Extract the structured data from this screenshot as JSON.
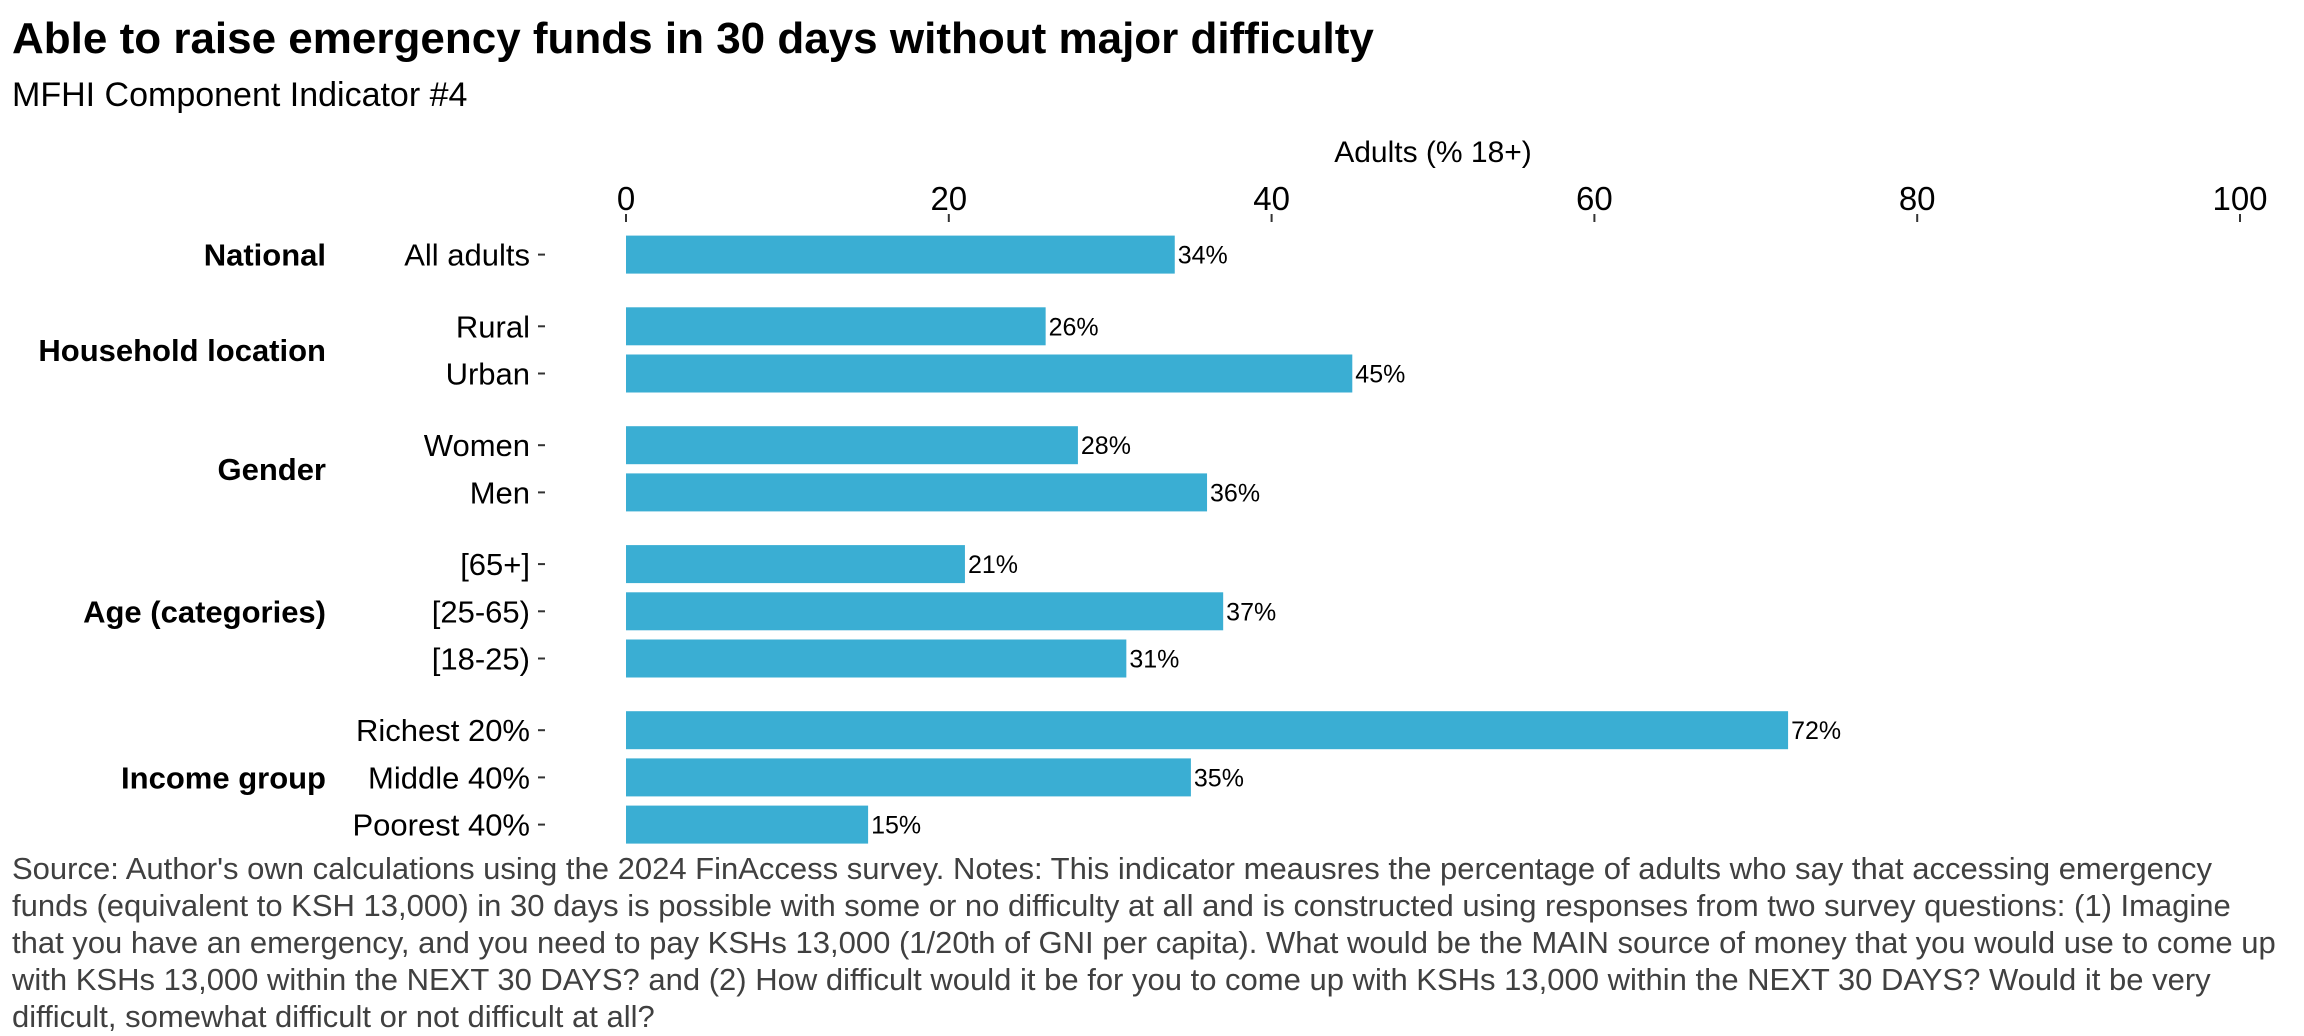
{
  "chart_data": {
    "type": "bar",
    "orientation": "horizontal",
    "title": "Able to raise emergency funds in 30 days without major difficulty",
    "subtitle": "MFHI Component Indicator #4",
    "xlabel": "Adults (% 18+)",
    "xlim": [
      0,
      100
    ],
    "x_ticks": [
      "0",
      "20",
      "40",
      "60",
      "80",
      "100"
    ],
    "x_axis_position": "top",
    "grid": false,
    "bar_color": "#3AAED3",
    "groups": [
      {
        "name": "National",
        "categories": [
          {
            "label": "All adults",
            "value": 34,
            "value_label": "34%"
          }
        ]
      },
      {
        "name": "Household location",
        "categories": [
          {
            "label": "Rural",
            "value": 26,
            "value_label": "26%"
          },
          {
            "label": "Urban",
            "value": 45,
            "value_label": "45%"
          }
        ]
      },
      {
        "name": "Gender",
        "categories": [
          {
            "label": "Women",
            "value": 28,
            "value_label": "28%"
          },
          {
            "label": "Men",
            "value": 36,
            "value_label": "36%"
          }
        ]
      },
      {
        "name": "Age (categories)",
        "categories": [
          {
            "label": "[65+]",
            "value": 21,
            "value_label": "21%"
          },
          {
            "label": "[25-65)",
            "value": 37,
            "value_label": "37%"
          },
          {
            "label": "[18-25)",
            "value": 31,
            "value_label": "31%"
          }
        ]
      },
      {
        "name": "Income group",
        "categories": [
          {
            "label": "Richest 20%",
            "value": 72,
            "value_label": "72%"
          },
          {
            "label": "Middle 40%",
            "value": 35,
            "value_label": "35%"
          },
          {
            "label": "Poorest 40%",
            "value": 15,
            "value_label": "15%"
          }
        ]
      }
    ],
    "caption": "Source: Author's own calculations using the 2024 FinAccess survey. Notes: This indicator meausres the percentage of adults who say that accessing emergency funds (equivalent to KSH 13,000) in 30 days is possible with some or no difficulty at all and is constructed using responses from two survey questions: (1) Imagine that you have an emergency, and you need to pay KSHs 13,000 (1/20th of GNI per capita). What would be the MAIN source of money that you would use to come up with KSHs 13,000 within the NEXT 30 DAYS? and (2) How difficult would it be for you to come up with KSHs 13,000 within the NEXT 30 DAYS? Would it be very difficult, somewhat difficult or not difficult at all?"
  }
}
